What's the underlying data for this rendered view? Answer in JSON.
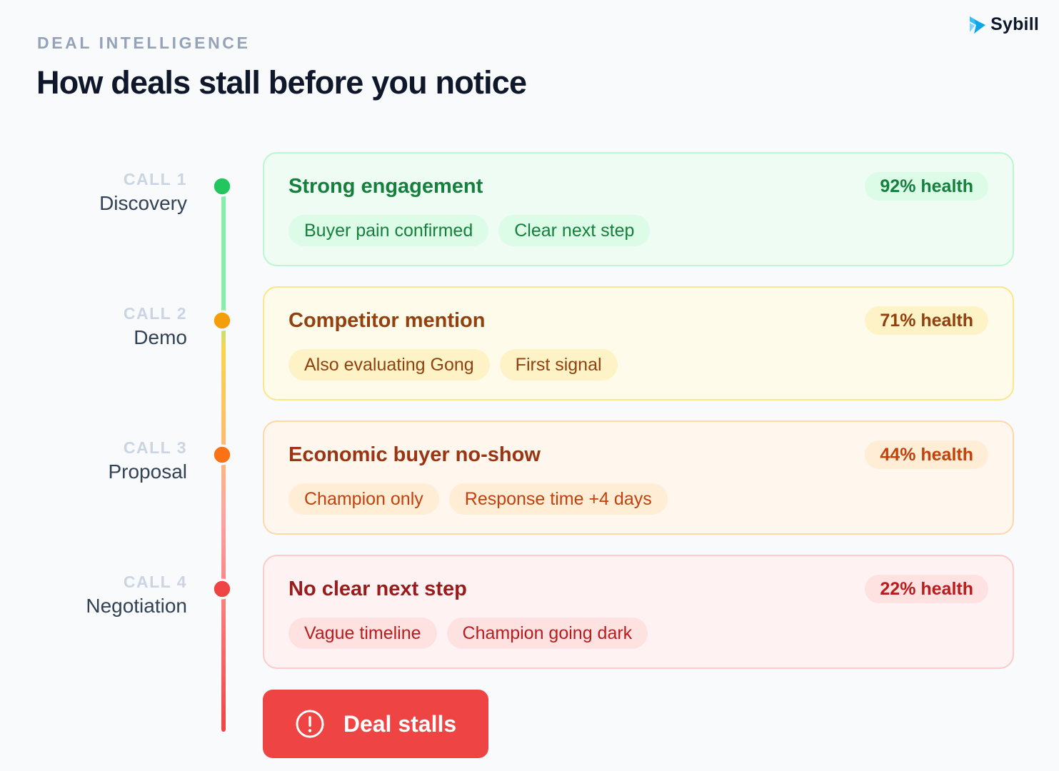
{
  "brand": {
    "name": "Sybill"
  },
  "header": {
    "eyebrow": "DEAL INTELLIGENCE",
    "title": "How deals stall before you notice"
  },
  "calls": [
    {
      "number": "CALL 1",
      "stage": "Discovery",
      "signal": "Strong engagement",
      "health": "92% health",
      "tags": [
        "Buyer pain confirmed",
        "Clear next step"
      ],
      "colors": {
        "dot": "#22c55e",
        "card_bg": "#effcf3",
        "border": "#bbf7d0",
        "title": "#15803d",
        "pill_bg": "#dcfce7",
        "pill_text": "#15803d"
      }
    },
    {
      "number": "CALL 2",
      "stage": "Demo",
      "signal": "Competitor mention",
      "health": "71% health",
      "tags": [
        "Also evaluating Gong",
        "First signal"
      ],
      "colors": {
        "dot": "#f59e0b",
        "card_bg": "#fffbeb",
        "border": "#fde68a",
        "title": "#92400e",
        "pill_bg": "#fef3c7",
        "pill_text": "#92400e"
      }
    },
    {
      "number": "CALL 3",
      "stage": "Proposal",
      "signal": "Economic buyer no-show",
      "health": "44% health",
      "tags": [
        "Champion only",
        "Response time +4 days"
      ],
      "colors": {
        "dot": "#f97316",
        "card_bg": "#fff7ed",
        "border": "#fed7aa",
        "title": "#9a3412",
        "pill_bg": "#ffedd5",
        "pill_text": "#c2410c"
      }
    },
    {
      "number": "CALL 4",
      "stage": "Negotiation",
      "signal": "No clear next step",
      "health": "22% health",
      "tags": [
        "Vague timeline",
        "Champion going dark"
      ],
      "colors": {
        "dot": "#ef4444",
        "card_bg": "#fef2f2",
        "border": "#fecaca",
        "title": "#991b1b",
        "pill_bg": "#fee2e2",
        "pill_text": "#b91c1c"
      }
    }
  ],
  "outcome": {
    "label": "Deal stalls",
    "icon": "alert-circle-icon",
    "color": "#ef4444"
  }
}
